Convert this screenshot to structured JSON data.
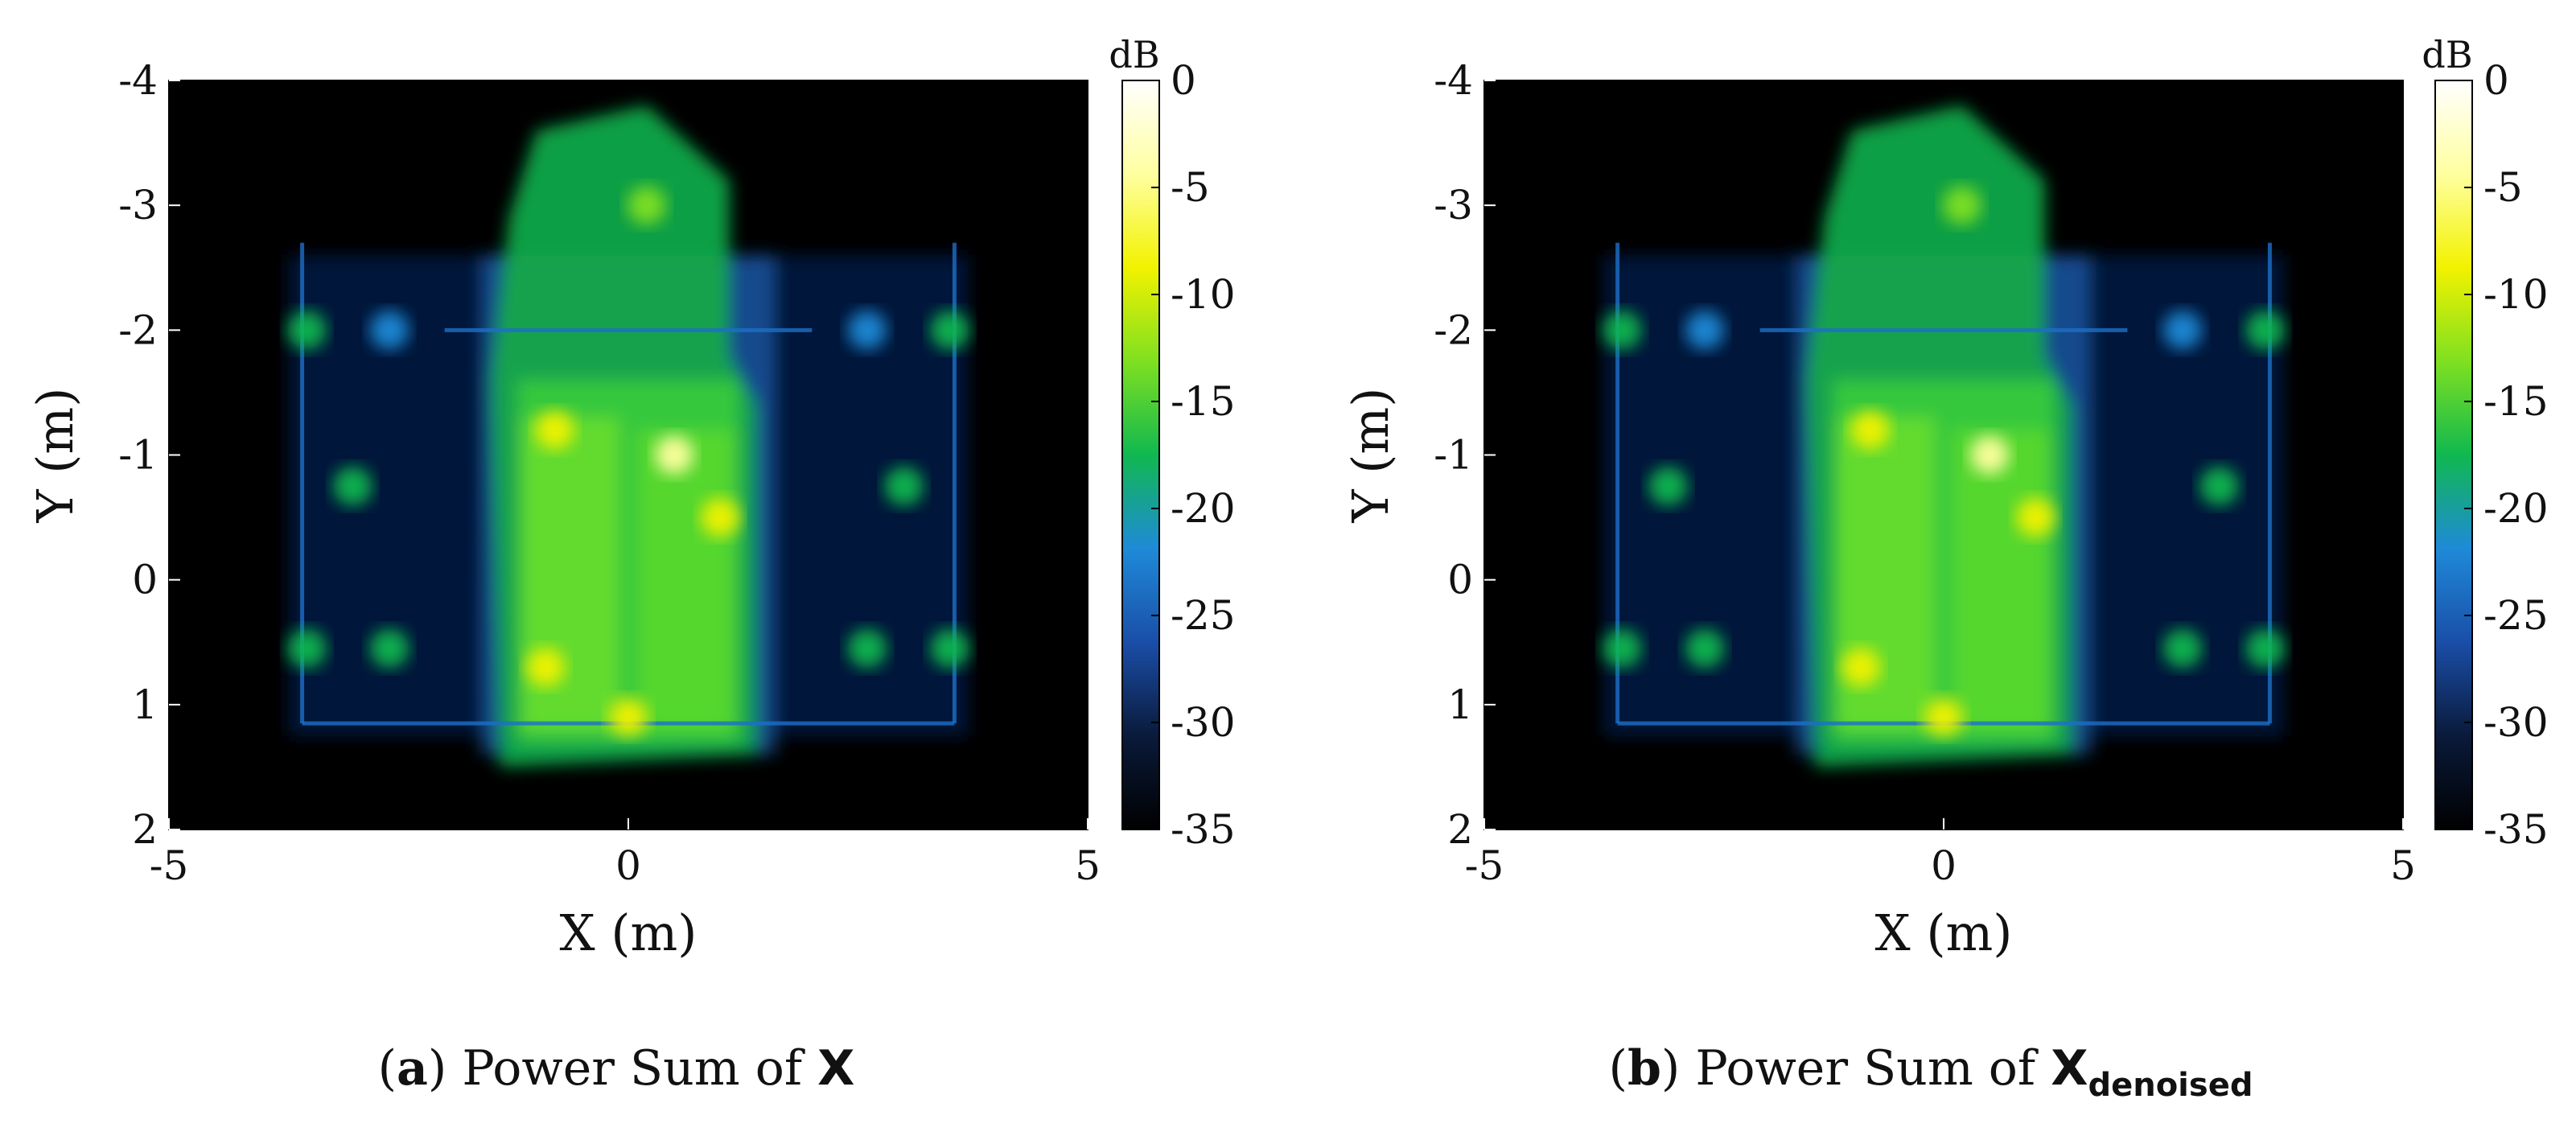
{
  "figure": {
    "panels": [
      {
        "id": "a",
        "caption_label": "a",
        "caption_text": "Power Sum of",
        "caption_symbol": "X",
        "caption_subscript": ""
      },
      {
        "id": "b",
        "caption_label": "b",
        "caption_text": "Power Sum of",
        "caption_symbol": "X",
        "caption_subscript": "denoised"
      }
    ]
  },
  "colors": {
    "colormap": [
      "#000000",
      "#0a1a3a",
      "#1a4ea8",
      "#1f8ad8",
      "#10b850",
      "#7fe020",
      "#f2f200",
      "#ffffa0",
      "#ffffff"
    ]
  },
  "chart_data": [
    {
      "type": "heatmap",
      "title": "",
      "xlabel": "X (m)",
      "ylabel": "Y (m)",
      "xlim": [
        -5,
        5
      ],
      "ylim": [
        -4,
        2
      ],
      "y_direction": "reversed",
      "xticks": [
        "-5",
        "0",
        "5"
      ],
      "yticks": [
        "-4",
        "-3",
        "-2",
        "-1",
        "0",
        "1",
        "2"
      ],
      "colorbar": {
        "unit": "dB",
        "range": [
          -35,
          0
        ],
        "ticks": [
          "0",
          "-5",
          "-10",
          "-15",
          "-20",
          "-25",
          "-30",
          "-35"
        ]
      },
      "features": [
        {
          "x": -3.5,
          "y": -2.0,
          "dB": -19
        },
        {
          "x": -2.6,
          "y": -2.0,
          "dB": -20
        },
        {
          "x": 2.6,
          "y": -2.0,
          "dB": -20
        },
        {
          "x": 3.5,
          "y": -2.0,
          "dB": -19
        },
        {
          "x": -3.0,
          "y": -0.75,
          "dB": -19
        },
        {
          "x": 3.0,
          "y": -0.75,
          "dB": -19
        },
        {
          "x": -3.5,
          "y": 0.55,
          "dB": -19
        },
        {
          "x": -2.6,
          "y": 0.55,
          "dB": -19
        },
        {
          "x": 2.6,
          "y": 0.55,
          "dB": -19
        },
        {
          "x": 3.5,
          "y": 0.55,
          "dB": -19
        },
        {
          "x": -0.8,
          "y": -1.2,
          "dB": -8
        },
        {
          "x": 0.5,
          "y": -1.0,
          "dB": -6
        },
        {
          "x": 1.0,
          "y": -0.5,
          "dB": -10
        },
        {
          "x": -0.9,
          "y": 0.7,
          "dB": -8
        },
        {
          "x": 0.2,
          "y": -3.0,
          "dB": -14
        },
        {
          "x": 0.0,
          "y": 1.1,
          "dB": -10
        }
      ]
    },
    {
      "type": "heatmap",
      "title": "",
      "xlabel": "X (m)",
      "ylabel": "Y (m)",
      "xlim": [
        -5,
        5
      ],
      "ylim": [
        -4,
        2
      ],
      "y_direction": "reversed",
      "xticks": [
        "-5",
        "0",
        "5"
      ],
      "yticks": [
        "-4",
        "-3",
        "-2",
        "-1",
        "0",
        "1",
        "2"
      ],
      "colorbar": {
        "unit": "dB",
        "range": [
          -35,
          0
        ],
        "ticks": [
          "0",
          "-5",
          "-10",
          "-15",
          "-20",
          "-25",
          "-30",
          "-35"
        ]
      },
      "features": [
        {
          "x": -3.5,
          "y": -2.0,
          "dB": -19
        },
        {
          "x": -2.6,
          "y": -2.0,
          "dB": -20
        },
        {
          "x": 2.6,
          "y": -2.0,
          "dB": -20
        },
        {
          "x": 3.5,
          "y": -2.0,
          "dB": -19
        },
        {
          "x": -3.0,
          "y": -0.75,
          "dB": -19
        },
        {
          "x": 3.0,
          "y": -0.75,
          "dB": -19
        },
        {
          "x": -3.5,
          "y": 0.55,
          "dB": -19
        },
        {
          "x": -2.6,
          "y": 0.55,
          "dB": -19
        },
        {
          "x": 2.6,
          "y": 0.55,
          "dB": -19
        },
        {
          "x": 3.5,
          "y": 0.55,
          "dB": -19
        },
        {
          "x": -0.8,
          "y": -1.2,
          "dB": -8
        },
        {
          "x": 0.5,
          "y": -1.0,
          "dB": -6
        },
        {
          "x": 1.0,
          "y": -0.5,
          "dB": -10
        },
        {
          "x": -0.9,
          "y": 0.7,
          "dB": -8
        },
        {
          "x": 0.2,
          "y": -3.0,
          "dB": -14
        },
        {
          "x": 0.0,
          "y": 1.1,
          "dB": -10
        }
      ]
    }
  ]
}
